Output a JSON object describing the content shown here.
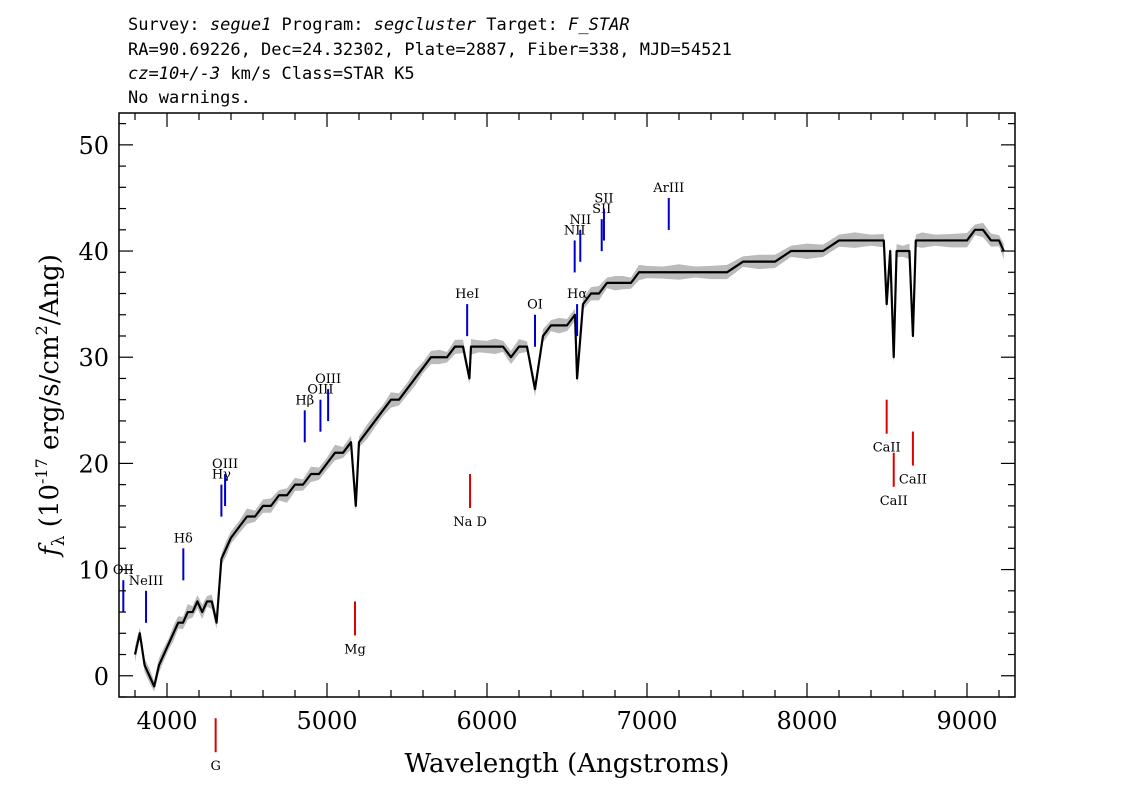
{
  "header": {
    "line1": {
      "survey_label": "Survey: ",
      "survey": "segue1",
      "program_label": " Program: ",
      "program": "segcluster",
      "target_label": " Target: ",
      "target": "F_STAR"
    },
    "line2": "RA=90.69226, Dec=24.32302, Plate=2887, Fiber=338, MJD=54521",
    "line3": {
      "cz": "cz=10+/-3",
      "rest": " km/s Class=STAR K5"
    },
    "line4": "No warnings."
  },
  "chart_data": {
    "type": "line",
    "xlabel": "Wavelength (Angstroms)",
    "ylabel": {
      "f": "f",
      "sub": "λ",
      "pre": " (10",
      "exp1": "-17",
      "mid": " erg/s/cm",
      "exp2": "2",
      "post": "/Ang)"
    },
    "xlim": [
      3700,
      9300
    ],
    "ylim": [
      -2,
      53
    ],
    "x_ticks": [
      4000,
      5000,
      6000,
      7000,
      8000,
      9000
    ],
    "x_tick_labels": [
      "4000",
      "5000",
      "6000",
      "7000",
      "8000",
      "9000"
    ],
    "y_ticks": [
      0,
      10,
      20,
      30,
      40,
      50
    ],
    "y_tick_labels": [
      "0",
      "10",
      "20",
      "30",
      "40",
      "50"
    ],
    "x_minor_step": 200,
    "y_minor_step": 2,
    "grid": false,
    "colors": {
      "flux": "#000000",
      "error_band": "#bbbbbb",
      "emission": "#0000cc",
      "absorption": "#dd0000"
    },
    "series": [
      {
        "role": "flux",
        "x": [
          3800,
          3830,
          3860,
          3890,
          3920,
          3950,
          3980,
          4010,
          4040,
          4070,
          4100,
          4130,
          4160,
          4190,
          4220,
          4250,
          4280,
          4310,
          4340,
          4370,
          4400,
          4450,
          4500,
          4550,
          4600,
          4650,
          4700,
          4750,
          4800,
          4850,
          4900,
          4950,
          5000,
          5050,
          5100,
          5150,
          5180,
          5200,
          5250,
          5300,
          5350,
          5400,
          5450,
          5500,
          5550,
          5600,
          5650,
          5700,
          5750,
          5800,
          5850,
          5890,
          5900,
          5950,
          6000,
          6050,
          6100,
          6150,
          6200,
          6250,
          6300,
          6350,
          6400,
          6450,
          6500,
          6550,
          6563,
          6600,
          6650,
          6700,
          6750,
          6800,
          6850,
          6900,
          6950,
          7000,
          7100,
          7200,
          7300,
          7400,
          7500,
          7600,
          7700,
          7800,
          7900,
          8000,
          8100,
          8200,
          8300,
          8400,
          8480,
          8498,
          8520,
          8542,
          8560,
          8600,
          8640,
          8662,
          8680,
          8720,
          8800,
          8900,
          9000,
          9050,
          9100,
          9150,
          9200,
          9230
        ],
        "y": [
          2,
          4,
          1,
          0,
          -1,
          1,
          2,
          3,
          4,
          5,
          5,
          6,
          6,
          7,
          6,
          7,
          7,
          5,
          11,
          12,
          13,
          14,
          15,
          15,
          16,
          16,
          17,
          17,
          18,
          18,
          19,
          19,
          20,
          21,
          21,
          22,
          16,
          22,
          23,
          24,
          25,
          26,
          26,
          27,
          28,
          29,
          30,
          30,
          30,
          31,
          31,
          28,
          31,
          31,
          31,
          31,
          31,
          30,
          31,
          31,
          27,
          32,
          33,
          33,
          33,
          34,
          28,
          35,
          36,
          36,
          37,
          37,
          37,
          37,
          38,
          38,
          38,
          38,
          38,
          38,
          38,
          39,
          39,
          39,
          40,
          40,
          40,
          41,
          41,
          41,
          41,
          35,
          40,
          30,
          40,
          40,
          40,
          32,
          41,
          41,
          41,
          41,
          41,
          42,
          42,
          41,
          41,
          40
        ]
      }
    ],
    "emission_lines": [
      {
        "label": "OII",
        "wave": 3727
      },
      {
        "label": "NeIII",
        "wave": 3869
      },
      {
        "label": "Hδ",
        "wave": 4102
      },
      {
        "label": "Hγ",
        "wave": 4340
      },
      {
        "label": "OIII",
        "wave": 4363
      },
      {
        "label": "Hβ",
        "wave": 4861
      },
      {
        "label": "OIII",
        "wave": 4959
      },
      {
        "label": "OIII",
        "wave": 5007
      },
      {
        "label": "HeI",
        "wave": 5876
      },
      {
        "label": "OI",
        "wave": 6300
      },
      {
        "label": "NII",
        "wave": 6548
      },
      {
        "label": "Hα",
        "wave": 6563
      },
      {
        "label": "NII",
        "wave": 6583
      },
      {
        "label": "SII",
        "wave": 6717
      },
      {
        "label": "SII",
        "wave": 6731
      },
      {
        "label": "ArIII",
        "wave": 7136
      }
    ],
    "absorption_lines": [
      {
        "label": "G",
        "wave": 4304
      },
      {
        "label": "Mg",
        "wave": 5175
      },
      {
        "label": "Na D",
        "wave": 5894
      },
      {
        "label": "CaII",
        "wave": 8498
      },
      {
        "label": "CaII",
        "wave": 8542
      },
      {
        "label": "CaII",
        "wave": 8662
      }
    ]
  }
}
